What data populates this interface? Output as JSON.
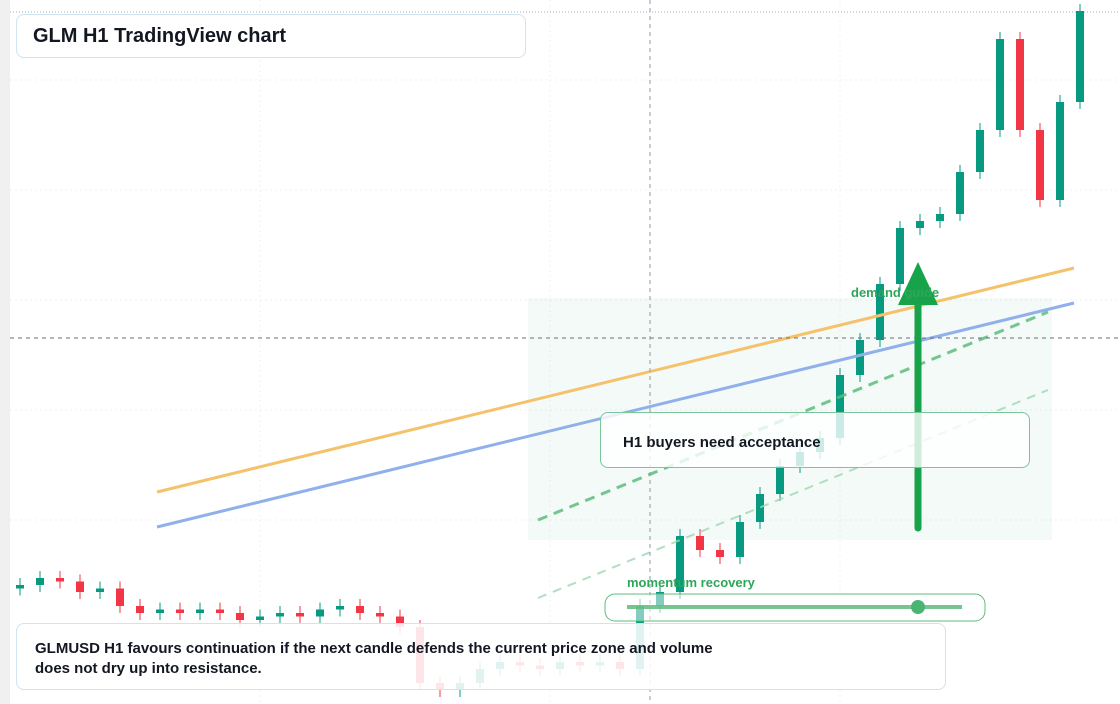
{
  "chart_data": {
    "type": "candlestick",
    "title": "GLM H1 TradingView chart",
    "annotations": [
      "demand guide",
      "H1 buyers need acceptance",
      "momentum recovery"
    ],
    "note": "GLMUSD H1 favours continuation if the next candle defends the current price zone and volume does not dry up into resistance.",
    "ylim": [
      0,
      100
    ],
    "up_color": "#089981",
    "down_color": "#f23645",
    "open": [
      16.5,
      17,
      18,
      17.5,
      16,
      16.5,
      14,
      13,
      13.5,
      13,
      13.5,
      13,
      12,
      12.5,
      13,
      12.5,
      13.5,
      14,
      13,
      12.5,
      11,
      3,
      2,
      3,
      5,
      6,
      5.5,
      5,
      6,
      5.5,
      6,
      5,
      14,
      16,
      24,
      22,
      21,
      26,
      30,
      34,
      36,
      38,
      47,
      52,
      60,
      68,
      69,
      70,
      76,
      82,
      95,
      82,
      72,
      86
    ],
    "high": [
      18,
      19,
      19,
      18.5,
      17.5,
      17.5,
      15,
      14.5,
      14.5,
      14.5,
      14.5,
      14,
      13.5,
      14,
      14,
      14.5,
      15,
      15,
      14,
      13.5,
      12,
      4,
      4,
      6,
      7,
      7,
      6.5,
      7,
      7,
      7,
      7,
      15,
      17,
      25,
      25,
      23,
      27,
      31,
      35,
      37,
      39,
      48,
      53,
      61,
      69,
      70,
      71,
      77,
      83,
      96,
      96,
      83,
      87,
      100
    ],
    "low": [
      15.5,
      16,
      16.5,
      15,
      15,
      13,
      12,
      12,
      12,
      12,
      12,
      11,
      11,
      11.5,
      11.5,
      11.5,
      12.5,
      12,
      11.5,
      10,
      2,
      1,
      1,
      2,
      4,
      4.5,
      4,
      4,
      4.5,
      4.5,
      4,
      4,
      13,
      15,
      21,
      20,
      20,
      25,
      29,
      33,
      35,
      37,
      46,
      51,
      59,
      67,
      68,
      69,
      75,
      81,
      81,
      71,
      71,
      85
    ],
    "close": [
      17,
      18,
      17.5,
      16,
      16.5,
      14,
      13,
      13.5,
      13,
      13.5,
      13,
      12,
      12.5,
      13,
      12.5,
      13.5,
      14,
      13,
      12.5,
      11,
      3,
      2,
      3,
      5,
      6,
      5.5,
      5,
      6,
      5.5,
      6,
      5,
      14,
      16,
      24,
      22,
      21,
      26,
      30,
      34,
      36,
      38,
      47,
      52,
      60,
      68,
      69,
      70,
      76,
      82,
      95,
      82,
      72,
      86,
      99
    ]
  }
}
